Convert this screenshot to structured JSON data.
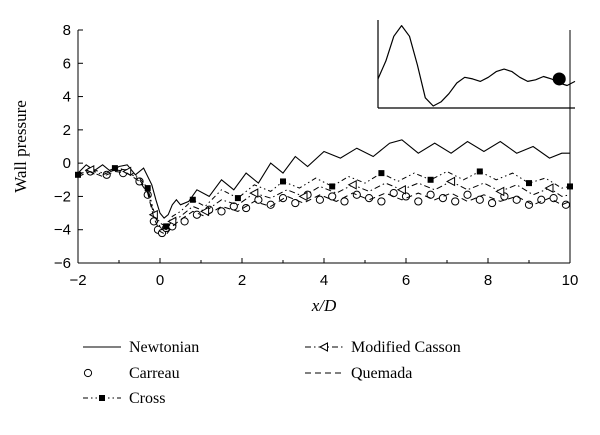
{
  "chart_data": {
    "type": "line",
    "title": "",
    "xlabel": "x/D",
    "ylabel": "Wall pressure",
    "xlim": [
      -2,
      10
    ],
    "ylim": [
      -6,
      8
    ],
    "x_ticks": [
      "−2",
      "0",
      "2",
      "4",
      "6",
      "8",
      "10"
    ],
    "y_ticks": [
      "−6",
      "−4",
      "−2",
      "0",
      "2",
      "4",
      "6",
      "8"
    ],
    "grid": false,
    "legend_position": "bottom",
    "series": [
      {
        "name": "Newtonian",
        "style": "solid",
        "marker": "none",
        "points": [
          [
            -2,
            -0.6
          ],
          [
            -1.8,
            -0.1
          ],
          [
            -1.6,
            -0.45
          ],
          [
            -1.4,
            -0.1
          ],
          [
            -1.2,
            -0.5
          ],
          [
            -1.0,
            -0.2
          ],
          [
            -0.8,
            -0.1
          ],
          [
            -0.6,
            -0.7
          ],
          [
            -0.4,
            -0.3
          ],
          [
            -0.2,
            -1.3
          ],
          [
            -0.1,
            -2.2
          ],
          [
            0.0,
            -3.0
          ],
          [
            0.1,
            -3.3
          ],
          [
            0.2,
            -3.1
          ],
          [
            0.3,
            -2.5
          ],
          [
            0.4,
            -2.2
          ],
          [
            0.5,
            -2.5
          ],
          [
            0.7,
            -2.3
          ],
          [
            0.9,
            -1.6
          ],
          [
            1.2,
            -2.0
          ],
          [
            1.5,
            -1.0
          ],
          [
            1.8,
            -1.6
          ],
          [
            2.1,
            -0.6
          ],
          [
            2.4,
            -1.2
          ],
          [
            2.7,
            0.0
          ],
          [
            3.0,
            -0.6
          ],
          [
            3.3,
            0.4
          ],
          [
            3.6,
            -0.2
          ],
          [
            4.0,
            0.7
          ],
          [
            4.4,
            0.3
          ],
          [
            4.8,
            0.9
          ],
          [
            5.2,
            0.4
          ],
          [
            5.6,
            1.2
          ],
          [
            5.9,
            1.4
          ],
          [
            6.3,
            0.6
          ],
          [
            6.7,
            1.2
          ],
          [
            7.1,
            0.6
          ],
          [
            7.5,
            1.3
          ],
          [
            7.9,
            0.7
          ],
          [
            8.3,
            1.3
          ],
          [
            8.7,
            0.6
          ],
          [
            9.1,
            1.0
          ],
          [
            9.5,
            0.3
          ],
          [
            9.8,
            0.6
          ],
          [
            10.0,
            0.6
          ]
        ]
      },
      {
        "name": "Carreau",
        "style": "none",
        "marker": "open-circle",
        "points": [
          [
            -1.7,
            -0.5
          ],
          [
            -1.3,
            -0.7
          ],
          [
            -0.9,
            -0.6
          ],
          [
            -0.5,
            -1.1
          ],
          [
            -0.3,
            -1.9
          ],
          [
            -0.15,
            -3.5
          ],
          [
            -0.05,
            -4.0
          ],
          [
            0.05,
            -4.2
          ],
          [
            0.15,
            -3.9
          ],
          [
            0.3,
            -3.8
          ],
          [
            0.6,
            -3.5
          ],
          [
            0.9,
            -3.1
          ],
          [
            1.2,
            -2.8
          ],
          [
            1.5,
            -2.9
          ],
          [
            1.8,
            -2.6
          ],
          [
            2.1,
            -2.7
          ],
          [
            2.4,
            -2.2
          ],
          [
            2.7,
            -2.5
          ],
          [
            3.0,
            -2.1
          ],
          [
            3.3,
            -2.4
          ],
          [
            3.6,
            -1.9
          ],
          [
            3.9,
            -2.2
          ],
          [
            4.2,
            -2.0
          ],
          [
            4.5,
            -2.3
          ],
          [
            4.8,
            -1.9
          ],
          [
            5.1,
            -2.1
          ],
          [
            5.4,
            -2.3
          ],
          [
            5.7,
            -1.8
          ],
          [
            6.0,
            -2.0
          ],
          [
            6.3,
            -2.3
          ],
          [
            6.6,
            -1.9
          ],
          [
            6.9,
            -2.1
          ],
          [
            7.2,
            -2.3
          ],
          [
            7.5,
            -1.9
          ],
          [
            7.8,
            -2.2
          ],
          [
            8.1,
            -2.4
          ],
          [
            8.4,
            -2.0
          ],
          [
            8.7,
            -2.2
          ],
          [
            9.0,
            -2.5
          ],
          [
            9.3,
            -2.2
          ],
          [
            9.6,
            -2.1
          ],
          [
            9.9,
            -2.5
          ]
        ]
      },
      {
        "name": "Cross",
        "style": "dash-dot-dot",
        "marker": "filled-square",
        "points": [
          [
            -2,
            -0.7
          ],
          [
            -1.7,
            -0.3
          ],
          [
            -1.4,
            -0.6
          ],
          [
            -1.1,
            -0.3
          ],
          [
            -0.8,
            -0.4
          ],
          [
            -0.5,
            -0.9
          ],
          [
            -0.3,
            -1.5
          ],
          [
            -0.15,
            -2.9
          ],
          [
            0.0,
            -3.6
          ],
          [
            0.15,
            -3.8
          ],
          [
            0.3,
            -3.2
          ],
          [
            0.5,
            -2.9
          ],
          [
            0.8,
            -2.2
          ],
          [
            1.1,
            -2.6
          ],
          [
            1.5,
            -1.6
          ],
          [
            1.9,
            -2.1
          ],
          [
            2.3,
            -1.3
          ],
          [
            2.7,
            -1.7
          ],
          [
            3.0,
            -1.1
          ],
          [
            3.4,
            -1.5
          ],
          [
            3.8,
            -0.9
          ],
          [
            4.2,
            -1.4
          ],
          [
            4.6,
            -0.8
          ],
          [
            5.0,
            -1.2
          ],
          [
            5.4,
            -0.6
          ],
          [
            5.8,
            -1.1
          ],
          [
            6.2,
            -0.6
          ],
          [
            6.6,
            -1.0
          ],
          [
            7.0,
            -0.5
          ],
          [
            7.4,
            -1.0
          ],
          [
            7.8,
            -0.5
          ],
          [
            8.2,
            -1.0
          ],
          [
            8.6,
            -0.6
          ],
          [
            9.0,
            -1.2
          ],
          [
            9.4,
            -0.9
          ],
          [
            9.8,
            -1.5
          ],
          [
            10.0,
            -1.4
          ]
        ]
      },
      {
        "name": "Modified Casson",
        "style": "dash-dot",
        "marker": "open-triangle-left",
        "points": [
          [
            -2,
            -0.7
          ],
          [
            -1.7,
            -0.4
          ],
          [
            -1.4,
            -0.7
          ],
          [
            -1.1,
            -0.4
          ],
          [
            -0.8,
            -0.5
          ],
          [
            -0.5,
            -1.0
          ],
          [
            -0.3,
            -1.7
          ],
          [
            -0.15,
            -3.1
          ],
          [
            0.0,
            -3.8
          ],
          [
            0.15,
            -4.0
          ],
          [
            0.3,
            -3.5
          ],
          [
            0.5,
            -3.2
          ],
          [
            0.8,
            -2.6
          ],
          [
            1.1,
            -2.9
          ],
          [
            1.5,
            -2.2
          ],
          [
            1.9,
            -2.5
          ],
          [
            2.3,
            -1.8
          ],
          [
            2.7,
            -2.1
          ],
          [
            3.1,
            -1.6
          ],
          [
            3.5,
            -2.0
          ],
          [
            3.9,
            -1.4
          ],
          [
            4.3,
            -1.8
          ],
          [
            4.7,
            -1.3
          ],
          [
            5.1,
            -1.7
          ],
          [
            5.5,
            -1.2
          ],
          [
            5.9,
            -1.6
          ],
          [
            6.3,
            -1.2
          ],
          [
            6.7,
            -1.6
          ],
          [
            7.1,
            -1.1
          ],
          [
            7.5,
            -1.6
          ],
          [
            7.9,
            -1.2
          ],
          [
            8.3,
            -1.7
          ],
          [
            8.7,
            -1.3
          ],
          [
            9.1,
            -1.9
          ],
          [
            9.5,
            -1.5
          ],
          [
            9.8,
            -2.0
          ],
          [
            10.0,
            -1.9
          ]
        ]
      },
      {
        "name": "Quemada",
        "style": "dashed",
        "marker": "none",
        "points": [
          [
            -2,
            -0.8
          ],
          [
            -1.7,
            -0.5
          ],
          [
            -1.4,
            -0.8
          ],
          [
            -1.1,
            -0.5
          ],
          [
            -0.8,
            -0.6
          ],
          [
            -0.5,
            -1.1
          ],
          [
            -0.3,
            -1.8
          ],
          [
            -0.15,
            -3.3
          ],
          [
            0.0,
            -4.1
          ],
          [
            0.15,
            -4.3
          ],
          [
            0.3,
            -3.8
          ],
          [
            0.5,
            -3.4
          ],
          [
            0.8,
            -2.9
          ],
          [
            1.1,
            -3.2
          ],
          [
            1.5,
            -2.6
          ],
          [
            1.9,
            -2.9
          ],
          [
            2.3,
            -2.3
          ],
          [
            2.7,
            -2.6
          ],
          [
            3.1,
            -2.0
          ],
          [
            3.5,
            -2.4
          ],
          [
            3.9,
            -1.9
          ],
          [
            4.3,
            -2.3
          ],
          [
            4.7,
            -1.8
          ],
          [
            5.1,
            -2.2
          ],
          [
            5.5,
            -1.8
          ],
          [
            5.9,
            -2.2
          ],
          [
            6.3,
            -1.8
          ],
          [
            6.7,
            -2.2
          ],
          [
            7.1,
            -1.8
          ],
          [
            7.5,
            -2.3
          ],
          [
            7.9,
            -1.9
          ],
          [
            8.3,
            -2.3
          ],
          [
            8.7,
            -2.0
          ],
          [
            9.1,
            -2.5
          ],
          [
            9.5,
            -2.1
          ],
          [
            9.8,
            -2.5
          ],
          [
            10.0,
            -2.3
          ]
        ]
      }
    ],
    "inset": {
      "description_type": "line",
      "x": [
        0,
        0.04,
        0.08,
        0.12,
        0.16,
        0.2,
        0.24,
        0.28,
        0.32,
        0.36,
        0.4,
        0.44,
        0.48,
        0.52,
        0.56,
        0.6,
        0.64,
        0.68,
        0.72,
        0.76,
        0.8,
        0.84,
        0.88,
        0.92,
        0.96,
        1.0
      ],
      "y": [
        0.33,
        0.55,
        0.85,
        0.98,
        0.85,
        0.5,
        0.1,
        0.0,
        0.05,
        0.15,
        0.28,
        0.35,
        0.33,
        0.3,
        0.35,
        0.42,
        0.45,
        0.42,
        0.35,
        0.3,
        0.32,
        0.36,
        0.33,
        0.28,
        0.25,
        0.3
      ],
      "marker_x": 0.92,
      "marker_y": 0.33
    }
  }
}
